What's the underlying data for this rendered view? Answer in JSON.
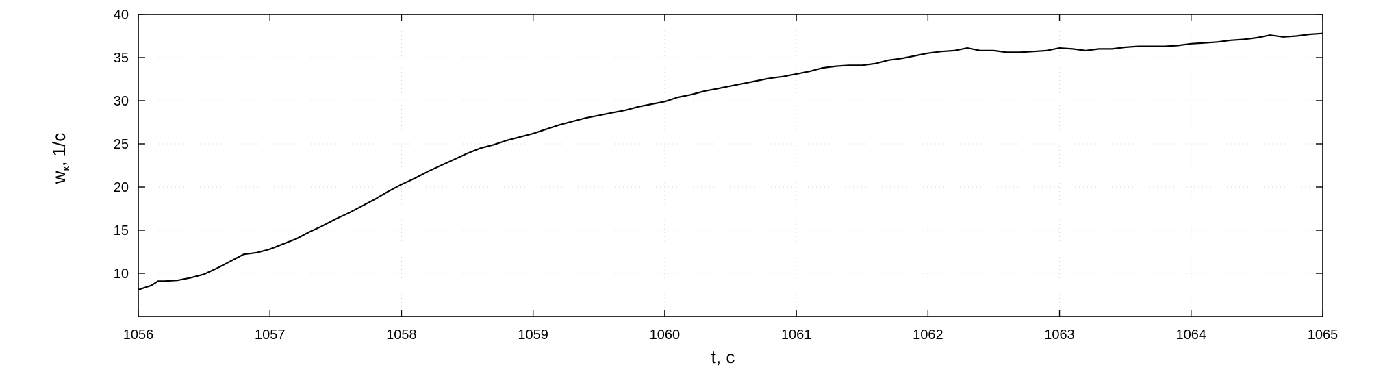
{
  "chart_data": {
    "type": "line",
    "xlabel": "t, c",
    "ylabel": {
      "main": "w",
      "subscript": "к",
      "suffix": ", 1/c"
    },
    "xlim": [
      1056,
      1065
    ],
    "ylim": [
      5,
      40
    ],
    "xticks": [
      1056,
      1057,
      1058,
      1059,
      1060,
      1061,
      1062,
      1063,
      1064,
      1065
    ],
    "yticks": [
      10,
      15,
      20,
      25,
      30,
      35,
      40
    ],
    "grid": true,
    "series": [
      {
        "x": [
          1056.0,
          1056.1,
          1056.15,
          1056.2,
          1056.3,
          1056.4,
          1056.5,
          1056.6,
          1056.7,
          1056.8,
          1056.9,
          1057.0,
          1057.1,
          1057.2,
          1057.3,
          1057.4,
          1057.5,
          1057.6,
          1057.7,
          1057.8,
          1057.9,
          1058.0,
          1058.1,
          1058.2,
          1058.3,
          1058.4,
          1058.5,
          1058.6,
          1058.7,
          1058.8,
          1058.9,
          1059.0,
          1059.1,
          1059.2,
          1059.3,
          1059.4,
          1059.5,
          1059.6,
          1059.7,
          1059.8,
          1059.9,
          1060.0,
          1060.1,
          1060.2,
          1060.3,
          1060.4,
          1060.5,
          1060.6,
          1060.7,
          1060.8,
          1060.9,
          1061.0,
          1061.1,
          1061.2,
          1061.3,
          1061.4,
          1061.5,
          1061.6,
          1061.7,
          1061.8,
          1061.9,
          1062.0,
          1062.1,
          1062.2,
          1062.3,
          1062.4,
          1062.5,
          1062.6,
          1062.7,
          1062.8,
          1062.9,
          1063.0,
          1063.1,
          1063.2,
          1063.3,
          1063.4,
          1063.5,
          1063.6,
          1063.7,
          1063.8,
          1063.9,
          1064.0,
          1064.1,
          1064.2,
          1064.3,
          1064.4,
          1064.5,
          1064.6,
          1064.7,
          1064.8,
          1064.9,
          1065.0
        ],
        "y": [
          8.1,
          8.6,
          9.1,
          9.1,
          9.2,
          9.5,
          9.9,
          10.6,
          11.4,
          12.2,
          12.4,
          12.8,
          13.4,
          14.0,
          14.8,
          15.5,
          16.3,
          17.0,
          17.8,
          18.6,
          19.5,
          20.3,
          21.0,
          21.8,
          22.5,
          23.2,
          23.9,
          24.5,
          24.9,
          25.4,
          25.8,
          26.2,
          26.7,
          27.2,
          27.6,
          28.0,
          28.3,
          28.6,
          28.9,
          29.3,
          29.6,
          29.9,
          30.4,
          30.7,
          31.1,
          31.4,
          31.7,
          32.0,
          32.3,
          32.6,
          32.8,
          33.1,
          33.4,
          33.8,
          34.0,
          34.1,
          34.1,
          34.3,
          34.7,
          34.9,
          35.2,
          35.5,
          35.7,
          35.8,
          36.1,
          35.8,
          35.8,
          35.6,
          35.6,
          35.7,
          35.8,
          36.1,
          36.0,
          35.8,
          36.0,
          36.0,
          36.2,
          36.3,
          36.3,
          36.3,
          36.4,
          36.6,
          36.7,
          36.8,
          37.0,
          37.1,
          37.3,
          37.6,
          37.4,
          37.5,
          37.7,
          37.8
        ]
      }
    ]
  }
}
